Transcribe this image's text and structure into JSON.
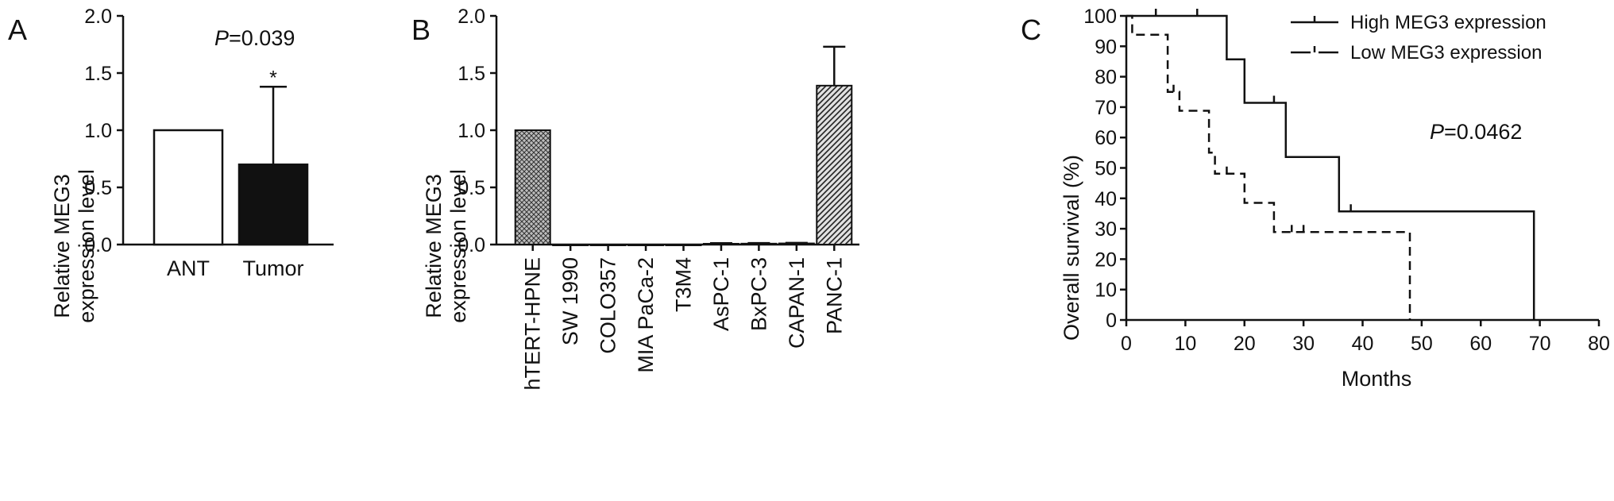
{
  "chart_data": [
    {
      "panel": "A",
      "type": "bar",
      "categories": [
        "ANT",
        "Tumor"
      ],
      "values": [
        1.0,
        0.7
      ],
      "errors": [
        null,
        0.68
      ],
      "bar_colors": [
        "#ffffff",
        "#111111"
      ],
      "ylabel": [
        "Relative MEG3",
        "expression level"
      ],
      "ylim": [
        0,
        2.0
      ],
      "yticks": [
        "0.0",
        "0.5",
        "1.0",
        "1.5",
        "2.0"
      ],
      "annotation": {
        "p_label": "P",
        "p_value": "=0.039"
      },
      "significance": "*"
    },
    {
      "panel": "B",
      "type": "bar",
      "categories": [
        "hTERT-HPNE",
        "SW 1990",
        "COLO357",
        "MIA PaCa-2",
        "T3M4",
        "AsPC-1",
        "BxPC-3",
        "CAPAN-1",
        "PANC-1"
      ],
      "values": [
        1.0,
        0.0,
        0.0,
        0.0,
        0.0,
        0.007,
        0.008,
        0.01,
        1.39
      ],
      "errors": [
        null,
        null,
        null,
        null,
        null,
        0.005,
        0.005,
        0.005,
        0.34
      ],
      "ylabel": [
        "Relative MEG3",
        "expression level"
      ],
      "ylim": [
        0,
        2.0
      ],
      "yticks": [
        "0.0",
        "0.5",
        "1.0",
        "1.5",
        "2.0"
      ]
    },
    {
      "panel": "C",
      "type": "line",
      "xlabel": "Months",
      "ylabel": "Overall survival (%)",
      "xlim": [
        0,
        80
      ],
      "ylim": [
        0,
        100
      ],
      "xticks": [
        "0",
        "10",
        "20",
        "30",
        "40",
        "50",
        "60",
        "70",
        "80"
      ],
      "yticks": [
        "0",
        "10",
        "20",
        "30",
        "40",
        "50",
        "60",
        "70",
        "80",
        "90",
        "100"
      ],
      "annotation": {
        "p_label": "P",
        "p_value": "=0.0462"
      },
      "legend": "top-right",
      "series": [
        {
          "name": "High MEG3 expression",
          "style": "solid",
          "steps": [
            [
              0,
              100
            ],
            [
              17,
              100
            ],
            [
              17,
              85.7
            ],
            [
              20,
              85.7
            ],
            [
              20,
              71.4
            ],
            [
              27,
              71.4
            ],
            [
              27,
              53.6
            ],
            [
              36,
              53.6
            ],
            [
              36,
              35.7
            ],
            [
              69,
              35.7
            ],
            [
              69,
              0
            ]
          ],
          "censored": [
            [
              5,
              100
            ],
            [
              12,
              100
            ],
            [
              25,
              71.4
            ],
            [
              38,
              35.7
            ]
          ]
        },
        {
          "name": "Low MEG3 expression",
          "style": "dashed",
          "steps": [
            [
              0,
              100
            ],
            [
              1,
              100
            ],
            [
              1,
              93.8
            ],
            [
              7,
              93.8
            ],
            [
              7,
              75
            ],
            [
              9,
              75
            ],
            [
              9,
              68.8
            ],
            [
              14,
              68.8
            ],
            [
              14,
              55
            ],
            [
              15,
              55
            ],
            [
              15,
              48.1
            ],
            [
              20,
              48.1
            ],
            [
              20,
              38.5
            ],
            [
              25,
              38.5
            ],
            [
              25,
              28.9
            ],
            [
              48,
              28.9
            ],
            [
              48,
              0
            ]
          ],
          "censored": [
            [
              8,
              75
            ],
            [
              17,
              48.1
            ],
            [
              28,
              28.9
            ],
            [
              30,
              28.9
            ]
          ]
        }
      ]
    }
  ]
}
